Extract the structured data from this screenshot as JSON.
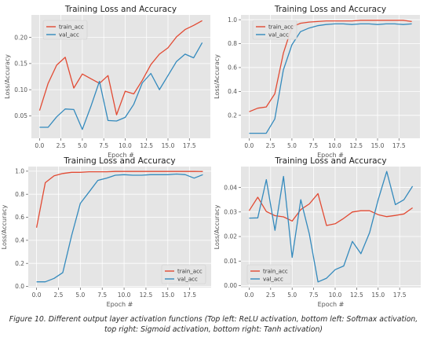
{
  "chart_data": [
    {
      "type": "line",
      "title": "Training Loss and Accuracy",
      "xlabel": "Epoch #",
      "ylabel": "Loss/Accuracy",
      "xlim": [
        -0.95,
        19.95
      ],
      "ylim": [
        0.007,
        0.243
      ],
      "xticks": [
        0.0,
        2.5,
        5.0,
        7.5,
        10.0,
        12.5,
        15.0,
        17.5
      ],
      "xtick_labels": [
        "0.0",
        "2.5",
        "5.0",
        "7.5",
        "10.0",
        "12.5",
        "15.0",
        "17.5"
      ],
      "yticks": [
        0.05,
        0.1,
        0.15,
        0.2
      ],
      "ytick_labels": [
        "0.05",
        "0.10",
        "0.15",
        "0.20"
      ],
      "legend": "top-left",
      "grid": true,
      "x": [
        0,
        1,
        2,
        3,
        4,
        5,
        6,
        7,
        8,
        9,
        10,
        11,
        12,
        13,
        14,
        15,
        16,
        17,
        18,
        19
      ],
      "series": [
        {
          "name": "train_acc",
          "color": "#e24a33",
          "values": [
            0.06,
            0.112,
            0.147,
            0.162,
            0.103,
            0.13,
            0.121,
            0.112,
            0.127,
            0.052,
            0.097,
            0.092,
            0.118,
            0.148,
            0.168,
            0.18,
            0.201,
            0.215,
            0.223,
            0.232
          ]
        },
        {
          "name": "val_acc",
          "color": "#348abd",
          "values": [
            0.028,
            0.028,
            0.048,
            0.063,
            0.062,
            0.024,
            0.068,
            0.116,
            0.041,
            0.04,
            0.047,
            0.072,
            0.113,
            0.131,
            0.1,
            0.127,
            0.154,
            0.168,
            0.161,
            0.19
          ]
        }
      ]
    },
    {
      "type": "line",
      "title": "Training Loss and Accuracy",
      "xlabel": "Epoch #",
      "ylabel": "Loss/Accuracy",
      "xlim": [
        -0.95,
        19.95
      ],
      "ylim": [
        0.008,
        1.04
      ],
      "xticks": [
        0.0,
        2.5,
        5.0,
        7.5,
        10.0,
        12.5,
        15.0,
        17.5
      ],
      "xtick_labels": [
        "0.0",
        "2.5",
        "5.0",
        "7.5",
        "10.0",
        "12.5",
        "15.0",
        "17.5"
      ],
      "yticks": [
        0.2,
        0.4,
        0.6,
        0.8,
        1.0
      ],
      "ytick_labels": [
        "0.2",
        "0.4",
        "0.6",
        "0.8",
        "1.0"
      ],
      "legend": "top-left",
      "grid": true,
      "x": [
        0,
        1,
        2,
        3,
        4,
        5,
        6,
        7,
        8,
        9,
        10,
        11,
        12,
        13,
        14,
        15,
        16,
        17,
        18,
        19
      ],
      "series": [
        {
          "name": "train_acc",
          "color": "#e24a33",
          "values": [
            0.23,
            0.26,
            0.27,
            0.38,
            0.72,
            0.94,
            0.97,
            0.98,
            0.985,
            0.99,
            0.99,
            0.99,
            0.99,
            0.995,
            0.995,
            0.995,
            0.995,
            0.995,
            0.995,
            0.985
          ]
        },
        {
          "name": "val_acc",
          "color": "#348abd",
          "values": [
            0.05,
            0.05,
            0.05,
            0.17,
            0.58,
            0.79,
            0.9,
            0.93,
            0.95,
            0.96,
            0.965,
            0.965,
            0.96,
            0.965,
            0.965,
            0.96,
            0.965,
            0.965,
            0.96,
            0.965
          ]
        }
      ]
    },
    {
      "type": "line",
      "title": "Training Loss and Accuracy",
      "xlabel": "Epoch #",
      "ylabel": "Loss/Accuracy",
      "xlim": [
        -0.95,
        19.95
      ],
      "ylim": [
        -0.01,
        1.04
      ],
      "xticks": [
        0.0,
        2.5,
        5.0,
        7.5,
        10.0,
        12.5,
        15.0,
        17.5
      ],
      "xtick_labels": [
        "0.0",
        "2.5",
        "5.0",
        "7.5",
        "10.0",
        "12.5",
        "15.0",
        "17.5"
      ],
      "yticks": [
        0.0,
        0.2,
        0.4,
        0.6,
        0.8,
        1.0
      ],
      "ytick_labels": [
        "0.0",
        "0.2",
        "0.4",
        "0.6",
        "0.8",
        "1.0"
      ],
      "legend": "bottom-right",
      "grid": true,
      "x": [
        0,
        1,
        2,
        3,
        4,
        5,
        6,
        7,
        8,
        9,
        10,
        11,
        12,
        13,
        14,
        15,
        16,
        17,
        18,
        19
      ],
      "series": [
        {
          "name": "train_acc",
          "color": "#e24a33",
          "values": [
            0.51,
            0.9,
            0.96,
            0.98,
            0.99,
            0.99,
            0.995,
            0.995,
            0.995,
            0.998,
            0.998,
            0.998,
            0.998,
            0.998,
            0.998,
            0.998,
            0.998,
            0.998,
            0.998,
            0.997
          ]
        },
        {
          "name": "val_acc",
          "color": "#348abd",
          "values": [
            0.04,
            0.04,
            0.07,
            0.12,
            0.44,
            0.72,
            0.82,
            0.92,
            0.94,
            0.965,
            0.97,
            0.965,
            0.965,
            0.97,
            0.97,
            0.97,
            0.975,
            0.97,
            0.94,
            0.97
          ]
        }
      ]
    },
    {
      "type": "line",
      "title": "Training Loss and Accuracy",
      "xlabel": "Epoch #",
      "ylabel": "Loss/Accuracy",
      "xlim": [
        -0.95,
        19.95
      ],
      "ylim": [
        -0.0008,
        0.0485
      ],
      "xticks": [
        0.0,
        2.5,
        5.0,
        7.5,
        10.0,
        12.5,
        15.0,
        17.5
      ],
      "xtick_labels": [
        "0.0",
        "2.5",
        "5.0",
        "7.5",
        "10.0",
        "12.5",
        "15.0",
        "17.5"
      ],
      "yticks": [
        0.0,
        0.01,
        0.02,
        0.03,
        0.04
      ],
      "ytick_labels": [
        "0.00",
        "0.01",
        "0.02",
        "0.03",
        "0.04"
      ],
      "legend": "bottom-left",
      "grid": true,
      "x": [
        0,
        1,
        2,
        3,
        4,
        5,
        6,
        7,
        8,
        9,
        10,
        11,
        12,
        13,
        14,
        15,
        16,
        17,
        18,
        19
      ],
      "series": [
        {
          "name": "train_acc",
          "color": "#e24a33",
          "values": [
            0.0305,
            0.036,
            0.0302,
            0.0285,
            0.028,
            0.0263,
            0.031,
            0.0333,
            0.0375,
            0.0245,
            0.0252,
            0.0274,
            0.03,
            0.0305,
            0.0305,
            0.0289,
            0.0281,
            0.0286,
            0.0292,
            0.0317
          ]
        },
        {
          "name": "val_acc",
          "color": "#348abd",
          "values": [
            0.0275,
            0.0276,
            0.0432,
            0.0225,
            0.0445,
            0.0115,
            0.035,
            0.021,
            0.0015,
            0.003,
            0.0065,
            0.008,
            0.018,
            0.013,
            0.0215,
            0.035,
            0.0465,
            0.033,
            0.035,
            0.0405
          ]
        }
      ]
    }
  ],
  "caption": "Figure 10. Different output layer activation functions (Top left: ReLU activation, bottom left: Softmax activation, top right: Sigmoid activation, bottom right: Tanh activation)",
  "colors": {
    "panel_bg": "#e5e5e5",
    "grid": "#ffffff",
    "tick_text": "#555555",
    "title_text": "#222222"
  }
}
